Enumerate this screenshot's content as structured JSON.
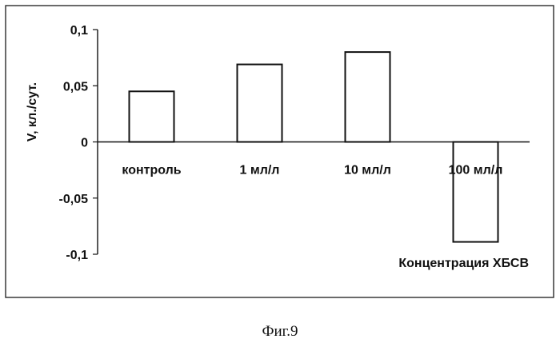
{
  "chart_data": {
    "type": "bar",
    "categories": [
      "контроль",
      "1 мл/л",
      "10 мл/л",
      "100 мл/л"
    ],
    "values": [
      0.045,
      0.069,
      0.08,
      -0.089
    ],
    "title": "",
    "xlabel": "Концентрация ХБСВ",
    "ylabel": "V, кл./сут.",
    "ylim": [
      -0.1,
      0.1
    ],
    "yticks": [
      0.1,
      0.05,
      0,
      -0.05,
      -0.1
    ],
    "ytick_labels": [
      "0,1",
      "0,05",
      "0",
      "-0,05",
      "-0,1"
    ],
    "grid": false,
    "legend": "none"
  },
  "figure_caption": "Фиг.9"
}
